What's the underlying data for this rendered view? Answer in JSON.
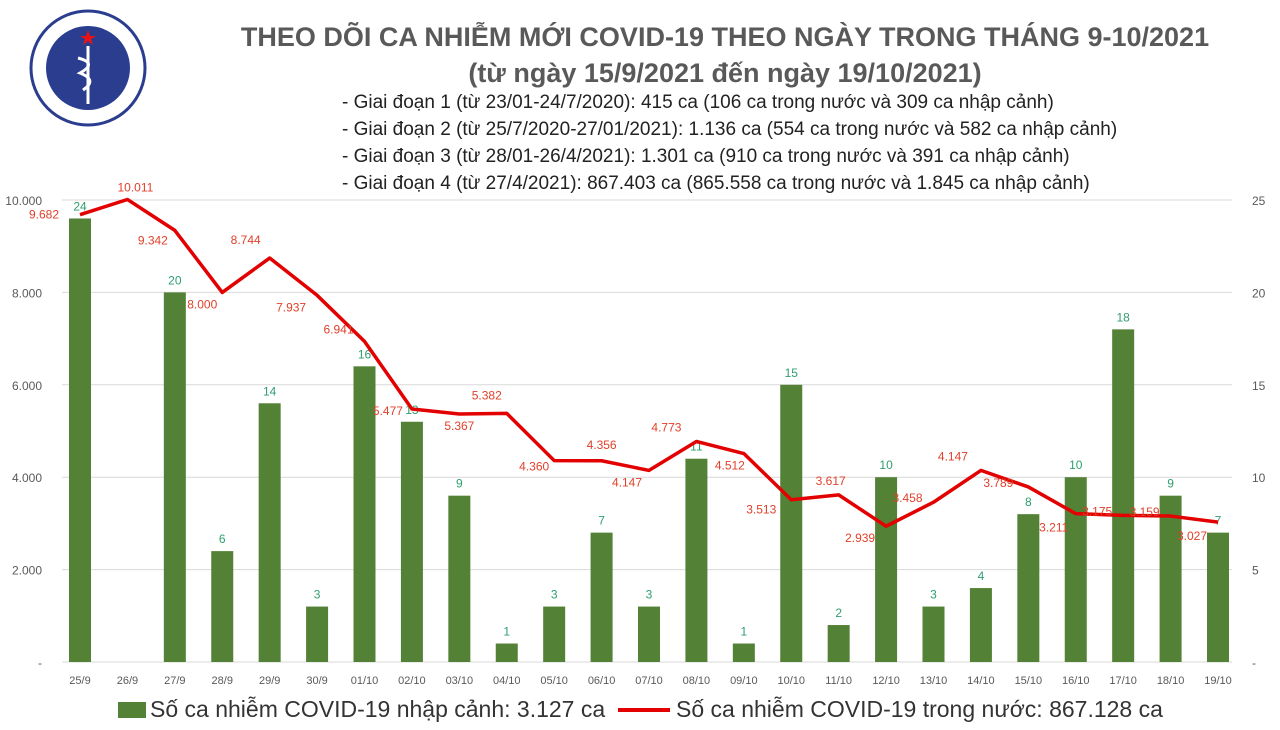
{
  "logo": {
    "text_top": "BỘ Y TẾ",
    "text_bottom": "MINISTRY OF HEALTH"
  },
  "title_line1": "THEO DÕI CA NHIỄM MỚI COVID-19 THEO NGÀY TRONG THÁNG 9-10/2021",
  "title_line2": "(từ ngày 15/9/2021 đến ngày 19/10/2021)",
  "phases": [
    "- Giai đoạn 1 (từ 23/01-24/7/2020): 415 ca (106 ca trong nước và 309 ca nhập cảnh)",
    "- Giai đoạn 2 (từ 25/7/2020-27/01/2021): 1.136 ca (554 ca trong nước và 582 ca nhập cảnh)",
    "- Giai đoạn 3 (từ 28/01-26/4/2021): 1.301 ca (910 ca trong nước và 391 ca nhập cảnh)",
    "- Giai đoạn 4 (từ 27/4/2021): 867.403 ca (865.558 ca trong nước và 1.845 ca nhập cảnh)"
  ],
  "chart_data": {
    "type": "bar+line",
    "categories": [
      "25/9",
      "26/9",
      "27/9",
      "28/9",
      "29/9",
      "30/9",
      "01/10",
      "02/10",
      "03/10",
      "04/10",
      "05/10",
      "06/10",
      "07/10",
      "08/10",
      "09/10",
      "10/10",
      "11/10",
      "12/10",
      "13/10",
      "14/10",
      "15/10",
      "16/10",
      "17/10",
      "18/10",
      "19/10"
    ],
    "series": [
      {
        "name": "Số ca nhiễm COVID-19 nhập cảnh: 3.127 ca",
        "type": "bar",
        "axis": "right",
        "color": "#538135",
        "label_color": "#2e9e6e",
        "values": [
          24,
          null,
          20,
          6,
          14,
          3,
          16,
          13,
          9,
          1,
          3,
          7,
          3,
          11,
          1,
          15,
          2,
          10,
          3,
          4,
          8,
          10,
          18,
          9,
          7
        ]
      },
      {
        "name": "Số ca nhiễm COVID-19 trong nước: 867.128 ca",
        "type": "line",
        "axis": "left",
        "color": "#e30000",
        "label_color": "#e0402a",
        "values": [
          9682,
          10011,
          9342,
          8000,
          8744,
          7937,
          6941,
          5477,
          5367,
          5382,
          4360,
          4356,
          4147,
          4773,
          4512,
          3513,
          3617,
          2939,
          3458,
          4147,
          3789,
          3211,
          3175,
          3159,
          3027
        ],
        "labels": [
          "9.682",
          "10.011",
          "9.342",
          "8.000",
          "8.744",
          "7.937",
          "6.941",
          "5.477",
          "5.367",
          "5.382",
          "4.360",
          "4.356",
          "4.147",
          "4.773",
          "4.512",
          "3.513",
          "3.617",
          "2.939",
          "3.458",
          "4.147",
          "3.789",
          "3.211",
          "3.175",
          "3.159",
          "3.027"
        ]
      }
    ],
    "y_left": {
      "ylim": [
        0,
        10000
      ],
      "ticks": [
        "-",
        "2.000",
        "4.000",
        "6.000",
        "8.000",
        "10.000"
      ]
    },
    "y_right": {
      "ylim": [
        0,
        25
      ],
      "ticks": [
        "-",
        "5",
        "10",
        "15",
        "20",
        "25"
      ]
    },
    "grid": true,
    "legend": "bottom"
  }
}
